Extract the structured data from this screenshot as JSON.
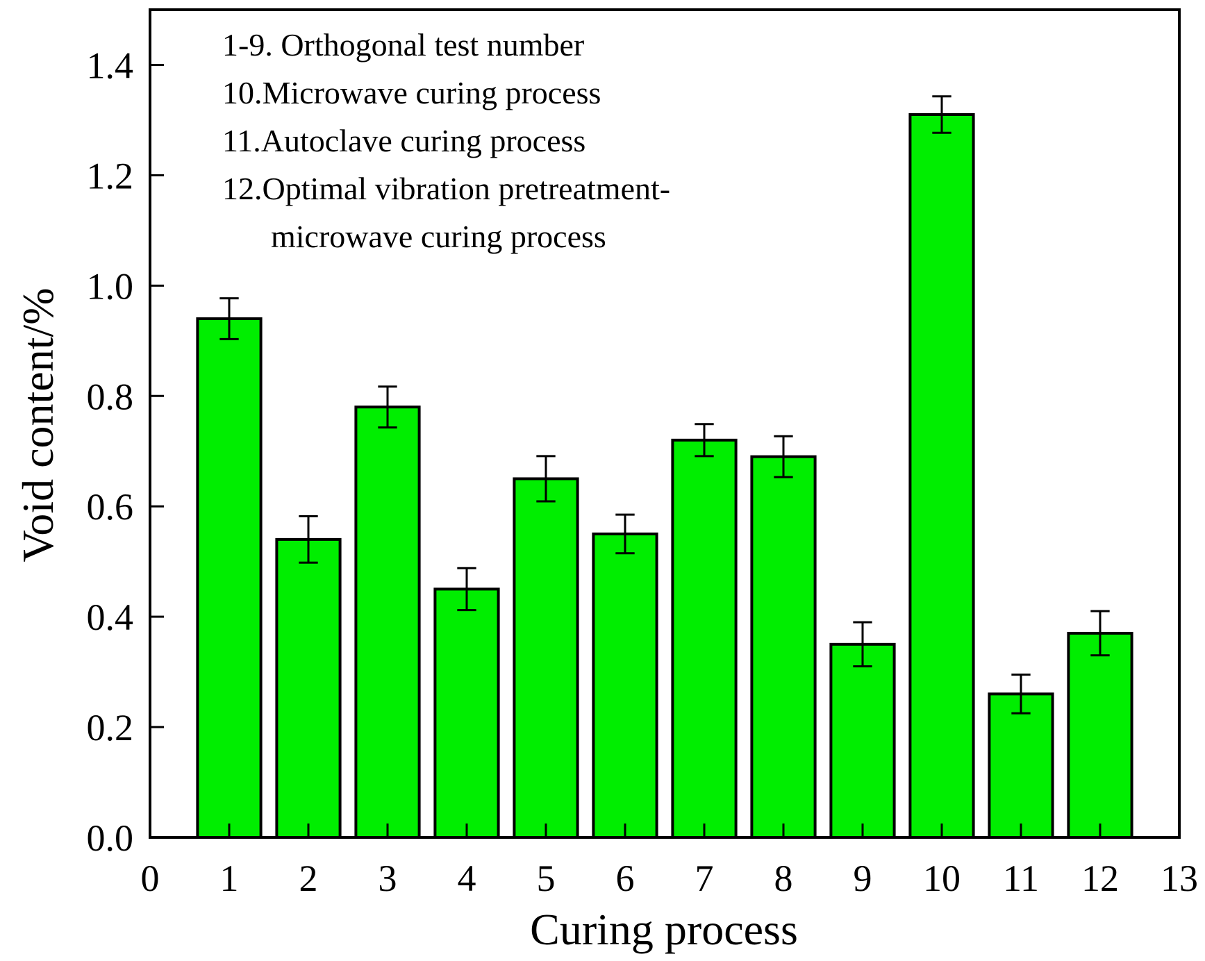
{
  "chart_data": {
    "type": "bar",
    "title": "",
    "xlabel": "Curing process",
    "ylabel": "Void content/%",
    "xlim": [
      0,
      13
    ],
    "ylim": [
      0.0,
      1.5
    ],
    "xticks": [
      "0",
      "1",
      "2",
      "3",
      "4",
      "5",
      "6",
      "7",
      "8",
      "9",
      "10",
      "11",
      "12",
      "13"
    ],
    "yticks": [
      "0.0",
      "0.2",
      "0.4",
      "0.6",
      "0.8",
      "1.0",
      "1.2",
      "1.4"
    ],
    "categories": [
      1,
      2,
      3,
      4,
      5,
      6,
      7,
      8,
      9,
      10,
      11,
      12
    ],
    "values": [
      0.94,
      0.54,
      0.78,
      0.45,
      0.65,
      0.55,
      0.72,
      0.69,
      0.35,
      1.31,
      0.26,
      0.37
    ],
    "errors": [
      0.037,
      0.042,
      0.037,
      0.038,
      0.041,
      0.035,
      0.029,
      0.037,
      0.04,
      0.033,
      0.035,
      0.04
    ],
    "bar_color": "#00ee00",
    "grid": false,
    "legend_position": "top-left",
    "annotation_lines": [
      "1-9. Orthogonal test number",
      "10.Microwave curing process",
      "11.Autoclave curing process",
      "12.Optimal vibration pretreatment-",
      "microwave curing process"
    ]
  }
}
